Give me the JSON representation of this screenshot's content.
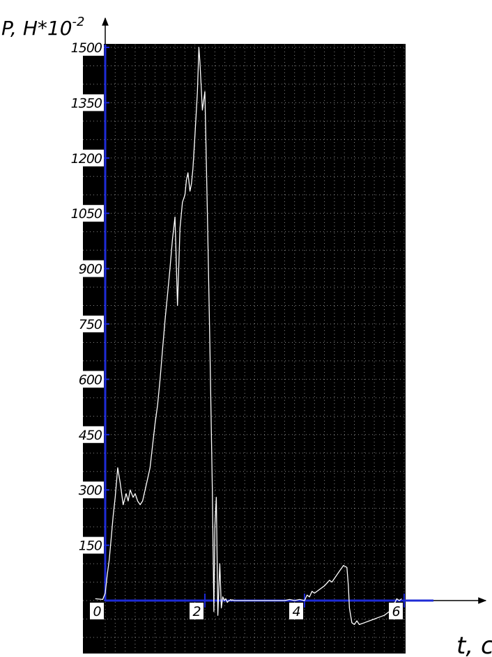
{
  "chart_data": {
    "type": "line",
    "title": "",
    "ylabel": "P, H*10",
    "ylabel_exponent": "-2",
    "xlabel": "t, c",
    "xlim": [
      0,
      6
    ],
    "ylim": [
      0,
      1500
    ],
    "y_ticks": [
      "1500",
      "1350",
      "1200",
      "1050",
      "900",
      "750",
      "600",
      "450",
      "300",
      "150"
    ],
    "x_ticks": [
      "0",
      "2",
      "4",
      "6"
    ],
    "grid": true,
    "legend": "none",
    "colors": {
      "plot_background": "#000000",
      "trace": "#ffffff",
      "axes": "#1e2bd6",
      "grid": "#8a8a8a"
    },
    "series": [
      {
        "x": [
          -0.2,
          -0.05,
          0.0,
          0.04,
          0.08,
          0.12,
          0.16,
          0.2,
          0.25,
          0.3,
          0.36,
          0.42,
          0.46,
          0.5,
          0.56,
          0.6,
          0.65,
          0.7,
          0.75,
          0.8,
          0.85,
          0.9,
          0.95,
          1.0,
          1.05,
          1.1,
          1.15,
          1.2,
          1.25,
          1.3,
          1.35,
          1.4,
          1.45,
          1.5,
          1.55,
          1.6,
          1.63,
          1.66,
          1.7,
          1.73,
          1.76,
          1.8,
          1.85,
          1.88,
          1.9,
          1.95,
          2.0,
          2.05,
          2.1,
          2.15,
          2.18,
          2.2,
          2.23,
          2.26,
          2.3,
          2.33,
          2.36,
          2.39,
          2.42,
          2.45,
          2.48,
          2.5,
          2.52,
          2.54,
          2.56,
          2.58,
          2.6,
          2.62,
          2.64,
          2.7,
          2.8,
          3.0,
          3.2,
          3.4,
          3.6,
          3.7,
          3.8,
          3.9,
          4.0,
          4.05,
          4.1,
          4.15,
          4.2,
          4.3,
          4.4,
          4.5,
          4.55,
          4.6,
          4.7,
          4.78,
          4.85,
          4.88,
          4.9,
          4.95,
          5.0,
          5.05,
          5.1,
          5.2,
          5.3,
          5.4,
          5.5,
          5.6,
          5.7,
          5.8,
          5.85,
          5.9,
          5.95
        ],
        "y": [
          5,
          3,
          20,
          70,
          110,
          170,
          230,
          280,
          360,
          320,
          260,
          290,
          270,
          300,
          280,
          290,
          270,
          260,
          270,
          300,
          330,
          360,
          420,
          480,
          530,
          600,
          680,
          760,
          830,
          900,
          980,
          1040,
          800,
          1010,
          1080,
          1100,
          1140,
          1160,
          1110,
          1130,
          1170,
          1260,
          1380,
          1500,
          1460,
          1330,
          1380,
          1050,
          700,
          300,
          -30,
          200,
          280,
          -40,
          100,
          -20,
          10,
          0,
          5,
          -5,
          0,
          0,
          3,
          0,
          2,
          0,
          0,
          0,
          0,
          0,
          0,
          0,
          0,
          0,
          0,
          3,
          0,
          3,
          0,
          15,
          10,
          25,
          20,
          30,
          40,
          55,
          50,
          60,
          80,
          95,
          90,
          40,
          -20,
          -60,
          -65,
          -55,
          -65,
          -60,
          -55,
          -50,
          -45,
          -40,
          -30,
          -10,
          5,
          0,
          5
        ]
      }
    ]
  }
}
